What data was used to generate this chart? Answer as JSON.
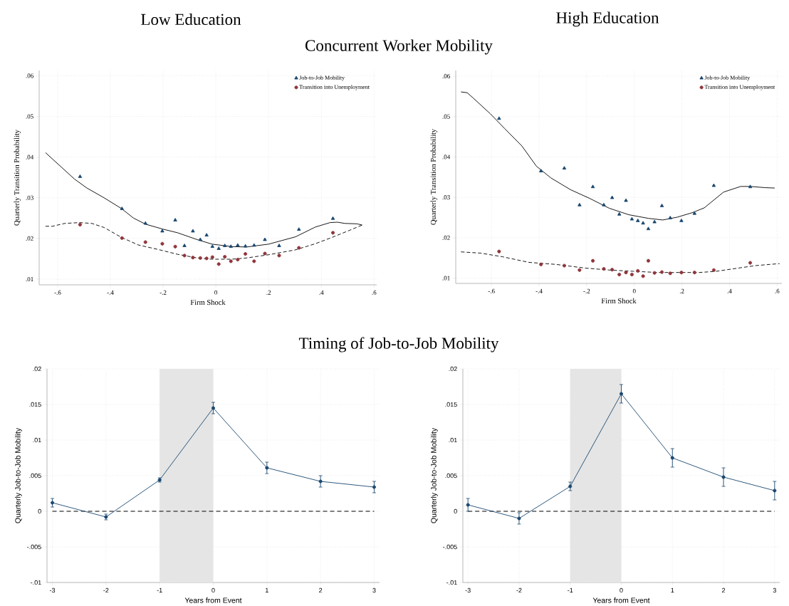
{
  "chart_data": [
    {
      "type": "scatter",
      "title": "Low Education",
      "subtitle": "Concurrent Worker Mobility",
      "xlabel": "Firm Shock",
      "ylabel": "Quarterly Transition Probability",
      "xlim": [
        -0.67,
        0.61
      ],
      "ylim": [
        0.0086,
        0.0613
      ],
      "xticks": [
        {
          "value": -0.6,
          "label": "-.6"
        },
        {
          "value": -0.4,
          "label": "-.4"
        },
        {
          "value": -0.2,
          "label": "-.2"
        },
        0,
        {
          "value": 0.2,
          "label": ".2"
        },
        {
          "value": 0.4,
          "label": ".4"
        },
        {
          "value": 0.6,
          "label": ".6"
        }
      ],
      "yticks": [
        {
          "value": 0.01,
          "label": ".01"
        },
        {
          "value": 0.02,
          "label": ".02"
        },
        {
          "value": 0.03,
          "label": ".03"
        },
        {
          "value": 0.04,
          "label": ".04"
        },
        {
          "value": 0.05,
          "label": ".05"
        },
        {
          "value": 0.06,
          "label": ".06"
        }
      ],
      "grid": true,
      "legend": "top right",
      "series": [
        {
          "name": "Job-to-Job Mobility",
          "color": "#1a476f",
          "marker": "triangle",
          "x": [
            -0.515,
            -0.356,
            -0.267,
            -0.203,
            -0.154,
            -0.119,
            -0.087,
            -0.059,
            -0.035,
            -0.013,
            0.011,
            0.034,
            0.057,
            0.083,
            0.112,
            0.145,
            0.186,
            0.24,
            0.315,
            0.444
          ],
          "values": [
            0.0352,
            0.0273,
            0.0237,
            0.0218,
            0.0245,
            0.0182,
            0.0218,
            0.0197,
            0.0208,
            0.018,
            0.0175,
            0.0182,
            0.018,
            0.0183,
            0.0181,
            0.0183,
            0.0197,
            0.0182,
            0.0222,
            0.0249
          ]
        },
        {
          "name": "Transition into Unemployment",
          "color": "#90353b",
          "marker": "circle",
          "x": [
            -0.515,
            -0.356,
            -0.267,
            -0.203,
            -0.154,
            -0.119,
            -0.087,
            -0.059,
            -0.035,
            -0.013,
            0.011,
            0.034,
            0.057,
            0.083,
            0.112,
            0.145,
            0.186,
            0.24,
            0.315,
            0.444
          ],
          "values": [
            0.0234,
            0.0201,
            0.0191,
            0.0187,
            0.018,
            0.0158,
            0.0153,
            0.0152,
            0.0151,
            0.0154,
            0.0137,
            0.0155,
            0.0144,
            0.0148,
            0.0162,
            0.0144,
            0.0163,
            0.0158,
            0.0177,
            0.0214
          ]
        },
        {
          "type": "line",
          "color": "#000000",
          "line_style": "solid",
          "x": [
            -0.646,
            -0.624,
            -0.536,
            -0.489,
            -0.424,
            -0.359,
            -0.312,
            -0.266,
            -0.201,
            -0.145,
            -0.07,
            -0.014,
            0.06,
            0.116,
            0.2,
            0.302,
            0.377,
            0.433,
            0.461,
            0.489,
            0.535,
            0.555
          ],
          "values": [
            0.0411,
            0.0398,
            0.0346,
            0.0324,
            0.03,
            0.0274,
            0.025,
            0.0235,
            0.0223,
            0.0214,
            0.0197,
            0.0186,
            0.018,
            0.0179,
            0.0186,
            0.0204,
            0.0228,
            0.0239,
            0.024,
            0.0237,
            0.0236,
            0.0233
          ]
        },
        {
          "type": "line",
          "color": "#000000",
          "line_style": "dashed",
          "x": [
            -0.646,
            -0.62,
            -0.573,
            -0.517,
            -0.47,
            -0.424,
            -0.359,
            -0.294,
            -0.219,
            -0.145,
            -0.07,
            -0.014,
            0.06,
            0.116,
            0.2,
            0.302,
            0.377,
            0.442,
            0.507,
            0.555
          ],
          "values": [
            0.023,
            0.023,
            0.0237,
            0.0239,
            0.0237,
            0.0227,
            0.0203,
            0.0184,
            0.0173,
            0.0161,
            0.0152,
            0.0149,
            0.0149,
            0.0152,
            0.016,
            0.0172,
            0.0187,
            0.0203,
            0.022,
            0.0233
          ]
        }
      ]
    },
    {
      "type": "scatter",
      "title": "High Education",
      "xlabel": "Firm Shock",
      "ylabel": "Quarterly Transition Probability",
      "xlim": [
        -0.75,
        0.62
      ],
      "ylim": [
        0.0087,
        0.0614
      ],
      "xticks": [
        {
          "value": -0.6,
          "label": "-.6"
        },
        {
          "value": -0.4,
          "label": "-.4"
        },
        {
          "value": -0.2,
          "label": "-.2"
        },
        0,
        {
          "value": 0.2,
          "label": ".2"
        },
        {
          "value": 0.4,
          "label": ".4"
        },
        {
          "value": 0.6,
          "label": ".6"
        }
      ],
      "yticks": [
        {
          "value": 0.01,
          "label": ".01"
        },
        {
          "value": 0.02,
          "label": ".02"
        },
        {
          "value": 0.03,
          "label": ".03"
        },
        {
          "value": 0.04,
          "label": ".04"
        },
        {
          "value": 0.05,
          "label": ".05"
        },
        {
          "value": 0.06,
          "label": ".06"
        }
      ],
      "grid": true,
      "legend": "top right",
      "series": [
        {
          "name": "Job-to-Job Mobility",
          "color": "#1a476f",
          "marker": "triangle",
          "x": [
            -0.568,
            -0.392,
            -0.294,
            -0.23,
            -0.174,
            -0.128,
            -0.093,
            -0.063,
            -0.035,
            -0.01,
            0.015,
            0.037,
            0.059,
            0.085,
            0.116,
            0.151,
            0.198,
            0.253,
            0.334,
            0.487
          ],
          "values": [
            0.0495,
            0.0365,
            0.0372,
            0.0281,
            0.0326,
            0.0281,
            0.0299,
            0.0258,
            0.0292,
            0.0246,
            0.0242,
            0.0236,
            0.0222,
            0.0239,
            0.0279,
            0.0249,
            0.0242,
            0.026,
            0.0329,
            0.0326
          ]
        },
        {
          "name": "Transition into Unemployment",
          "color": "#90353b",
          "marker": "circle",
          "x": [
            -0.568,
            -0.392,
            -0.294,
            -0.23,
            -0.174,
            -0.128,
            -0.093,
            -0.063,
            -0.035,
            -0.01,
            0.015,
            0.037,
            0.059,
            0.085,
            0.116,
            0.151,
            0.198,
            0.253,
            0.334,
            0.487
          ],
          "values": [
            0.0166,
            0.0134,
            0.0131,
            0.012,
            0.0143,
            0.0123,
            0.0121,
            0.0109,
            0.0114,
            0.0109,
            0.0118,
            0.0105,
            0.0143,
            0.0113,
            0.0115,
            0.0112,
            0.0114,
            0.0114,
            0.012,
            0.0138
          ]
        },
        {
          "type": "line",
          "color": "#000000",
          "line_style": "solid",
          "x": [
            -0.728,
            -0.702,
            -0.677,
            -0.605,
            -0.544,
            -0.472,
            -0.411,
            -0.35,
            -0.268,
            -0.186,
            -0.105,
            -0.023,
            0.059,
            0.12,
            0.181,
            0.243,
            0.294,
            0.375,
            0.447,
            0.488,
            0.549,
            0.59
          ],
          "values": [
            0.0561,
            0.0559,
            0.0546,
            0.0507,
            0.047,
            0.0427,
            0.0377,
            0.0348,
            0.0319,
            0.0297,
            0.0273,
            0.0257,
            0.0248,
            0.0244,
            0.0251,
            0.0262,
            0.0274,
            0.0313,
            0.0327,
            0.0327,
            0.0324,
            0.0323
          ]
        },
        {
          "type": "line",
          "color": "#000000",
          "line_style": "dashed",
          "x": [
            -0.728,
            -0.646,
            -0.554,
            -0.442,
            -0.329,
            -0.207,
            -0.105,
            -0.003,
            0.1,
            0.202,
            0.273,
            0.345,
            0.426,
            0.508,
            0.61
          ],
          "values": [
            0.0165,
            0.0162,
            0.0153,
            0.0139,
            0.0134,
            0.0125,
            0.012,
            0.0117,
            0.0114,
            0.0114,
            0.0114,
            0.0117,
            0.0124,
            0.0131,
            0.0136
          ]
        }
      ]
    },
    {
      "type": "line",
      "title": "Timing of Job-to-Job Mobility",
      "xlabel": "Years from Event",
      "ylabel": "Quarterly Job-to-Job Mobility",
      "xlim": [
        -3.1,
        3.1
      ],
      "ylim": [
        -0.01,
        0.02
      ],
      "xticks": [
        -3,
        -2,
        -1,
        0,
        1,
        2,
        3
      ],
      "yticks": [
        {
          "value": -0.01,
          "label": "-.01"
        },
        {
          "value": -0.005,
          "label": "-.005"
        },
        0,
        {
          "value": 0.005,
          "label": ".005"
        },
        {
          "value": 0.01,
          "label": ".01"
        },
        {
          "value": 0.015,
          "label": ".015"
        },
        {
          "value": 0.02,
          "label": ".02"
        }
      ],
      "grid": true,
      "marker": "circle",
      "ref_lines": [
        {
          "axis": "y",
          "value": 0,
          "color": "#000000",
          "line_style": "dashed"
        }
      ],
      "bands": [
        {
          "axis": "x",
          "from": -1,
          "to": 0,
          "color": "#e5e5e5"
        }
      ],
      "series": [
        {
          "color": "#1a476f",
          "x": [
            -3,
            -2,
            -1,
            0,
            1,
            2,
            3
          ],
          "values": [
            0.0012,
            -0.0008,
            0.0044,
            0.0145,
            0.0061,
            0.0042,
            0.0034
          ],
          "errors": [
            0.0006,
            0.0004,
            0.0003,
            0.0008,
            0.0008,
            0.0008,
            0.0008
          ]
        }
      ]
    },
    {
      "type": "line",
      "xlabel": "Years from Event",
      "ylabel": "Quarterly Job-to-Job Mobility",
      "xlim": [
        -3.1,
        3.1
      ],
      "ylim": [
        -0.01,
        0.02
      ],
      "xticks": [
        -3,
        -2,
        -1,
        0,
        1,
        2,
        3
      ],
      "yticks": [
        {
          "value": -0.01,
          "label": "-.01"
        },
        {
          "value": -0.005,
          "label": "-.005"
        },
        0,
        {
          "value": 0.005,
          "label": ".005"
        },
        {
          "value": 0.01,
          "label": ".01"
        },
        {
          "value": 0.015,
          "label": ".015"
        },
        {
          "value": 0.02,
          "label": ".02"
        }
      ],
      "grid": true,
      "marker": "circle",
      "ref_lines": [
        {
          "axis": "y",
          "value": 0,
          "color": "#000000",
          "line_style": "dashed"
        }
      ],
      "bands": [
        {
          "axis": "x",
          "from": -1,
          "to": 0,
          "color": "#e5e5e5"
        }
      ],
      "series": [
        {
          "color": "#1a476f",
          "x": [
            -3,
            -2,
            -1,
            0,
            1,
            2,
            3
          ],
          "values": [
            0.0009,
            -0.001,
            0.0035,
            0.0165,
            0.0075,
            0.0048,
            0.0029
          ],
          "errors": [
            0.0009,
            0.0008,
            0.0006,
            0.0013,
            0.0013,
            0.0013,
            0.0013
          ]
        }
      ]
    }
  ]
}
